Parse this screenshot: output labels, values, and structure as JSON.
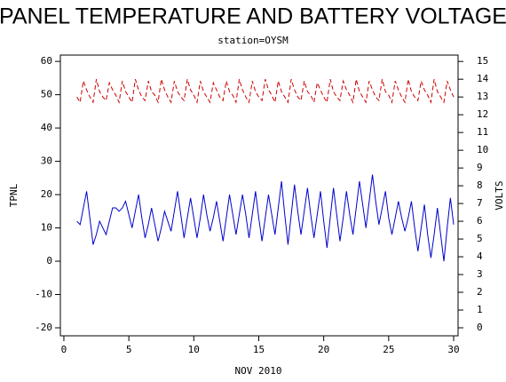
{
  "chart_data": {
    "type": "line",
    "title": "PANEL TEMPERATURE AND BATTERY VOLTAGE",
    "subtitle": "station=OYSM",
    "xlabel": "NOV 2010",
    "ylabel": "TPNL",
    "y2label": "VOLTS",
    "xlim": [
      -0.27,
      30.34
    ],
    "xticks": [
      0,
      5,
      10,
      15,
      20,
      25,
      30
    ],
    "ylim": [
      -22.4,
      61.9
    ],
    "yticks": [
      -20,
      -10,
      0,
      10,
      20,
      30,
      40,
      50,
      60
    ],
    "y2lim": [
      -0.45,
      15.36
    ],
    "y2ticks": [
      0,
      1,
      2,
      3,
      4,
      5,
      6,
      7,
      8,
      9,
      10,
      11,
      12,
      13,
      14,
      15
    ],
    "x": [
      1,
      1.25,
      1.5,
      1.75,
      2,
      2.25,
      2.5,
      2.75,
      3,
      3.25,
      3.5,
      3.75,
      4,
      4.25,
      4.5,
      4.75,
      5,
      5.25,
      5.5,
      5.75,
      6,
      6.25,
      6.5,
      6.75,
      7,
      7.25,
      7.5,
      7.75,
      8,
      8.25,
      8.5,
      8.75,
      9,
      9.25,
      9.5,
      9.75,
      10,
      10.25,
      10.5,
      10.75,
      11,
      11.25,
      11.5,
      11.75,
      12,
      12.25,
      12.5,
      12.75,
      13,
      13.25,
      13.5,
      13.75,
      14,
      14.25,
      14.5,
      14.75,
      15,
      15.25,
      15.5,
      15.75,
      16,
      16.25,
      16.5,
      16.75,
      17,
      17.25,
      17.5,
      17.75,
      18,
      18.25,
      18.5,
      18.75,
      19,
      19.25,
      19.5,
      19.75,
      20,
      20.25,
      20.5,
      20.75,
      21,
      21.25,
      21.5,
      21.75,
      22,
      22.25,
      22.5,
      22.75,
      23,
      23.25,
      23.5,
      23.75,
      24,
      24.25,
      24.5,
      24.75,
      25,
      25.25,
      25.5,
      25.75,
      26,
      26.25,
      26.5,
      26.75,
      27,
      27.25,
      27.5,
      27.75,
      28,
      28.25,
      28.5,
      28.75,
      29,
      29.25,
      29.5,
      29.75,
      30
    ],
    "series": [
      {
        "name": "TPNL",
        "color": "#0000cc",
        "axis": "y",
        "dashed": false,
        "values": [
          12,
          11,
          16,
          21,
          13,
          5,
          8,
          12,
          10,
          8,
          12,
          16,
          16,
          15,
          16,
          18,
          14,
          10,
          15,
          20,
          13,
          7,
          11,
          16,
          11,
          6,
          10,
          15,
          12,
          9,
          15,
          21,
          14,
          7,
          13,
          19,
          13,
          7,
          13,
          20,
          14,
          9,
          13,
          18,
          12,
          6,
          13,
          20,
          14,
          8,
          14,
          20,
          14,
          7,
          14,
          21,
          13,
          6,
          13,
          20,
          14,
          8,
          16,
          24,
          14,
          5,
          14,
          23,
          15,
          8,
          15,
          22,
          14,
          7,
          14,
          21,
          12,
          4,
          13,
          22,
          14,
          6,
          13,
          21,
          14,
          8,
          16,
          24,
          17,
          10,
          18,
          26,
          18,
          11,
          16,
          21,
          13,
          8,
          13,
          18,
          13,
          9,
          13,
          18,
          10,
          3,
          10,
          17,
          8,
          1,
          8,
          16,
          8,
          0,
          10,
          19,
          11
        ]
      },
      {
        "name": "VOLTS",
        "color": "#cc0000",
        "axis": "y2",
        "dashed": true,
        "values": [
          13.0,
          12.7,
          13.9,
          13.4,
          13.0,
          12.7,
          14.0,
          13.3,
          13.0,
          12.8,
          13.8,
          13.4,
          13.1,
          12.7,
          13.9,
          13.3,
          13.0,
          12.7,
          14.0,
          13.4,
          13.0,
          12.8,
          13.9,
          13.3,
          13.1,
          12.7,
          14.0,
          13.4,
          13.0,
          12.7,
          13.9,
          13.3,
          13.0,
          12.8,
          14.0,
          13.4,
          13.1,
          12.7,
          13.9,
          13.3,
          13.0,
          12.7,
          13.8,
          13.4,
          13.0,
          12.8,
          13.9,
          13.3,
          13.1,
          12.7,
          14.0,
          13.4,
          13.0,
          12.7,
          13.9,
          13.3,
          13.0,
          12.8,
          14.0,
          13.4,
          13.1,
          12.7,
          13.9,
          13.3,
          13.0,
          12.7,
          14.0,
          13.4,
          13.0,
          12.8,
          13.9,
          13.3,
          13.1,
          12.7,
          13.8,
          13.4,
          13.0,
          12.7,
          14.0,
          13.3,
          13.0,
          12.8,
          13.9,
          13.4,
          13.1,
          12.7,
          14.0,
          13.3,
          13.0,
          12.7,
          13.9,
          13.4,
          13.0,
          12.8,
          14.0,
          13.3,
          13.1,
          12.7,
          13.9,
          13.4,
          13.0,
          12.7,
          14.0,
          13.3,
          13.0,
          12.8,
          13.9,
          13.4,
          13.1,
          12.7,
          14.0,
          13.3,
          13.0,
          12.7,
          13.9,
          13.4,
          13.0
        ]
      }
    ]
  }
}
